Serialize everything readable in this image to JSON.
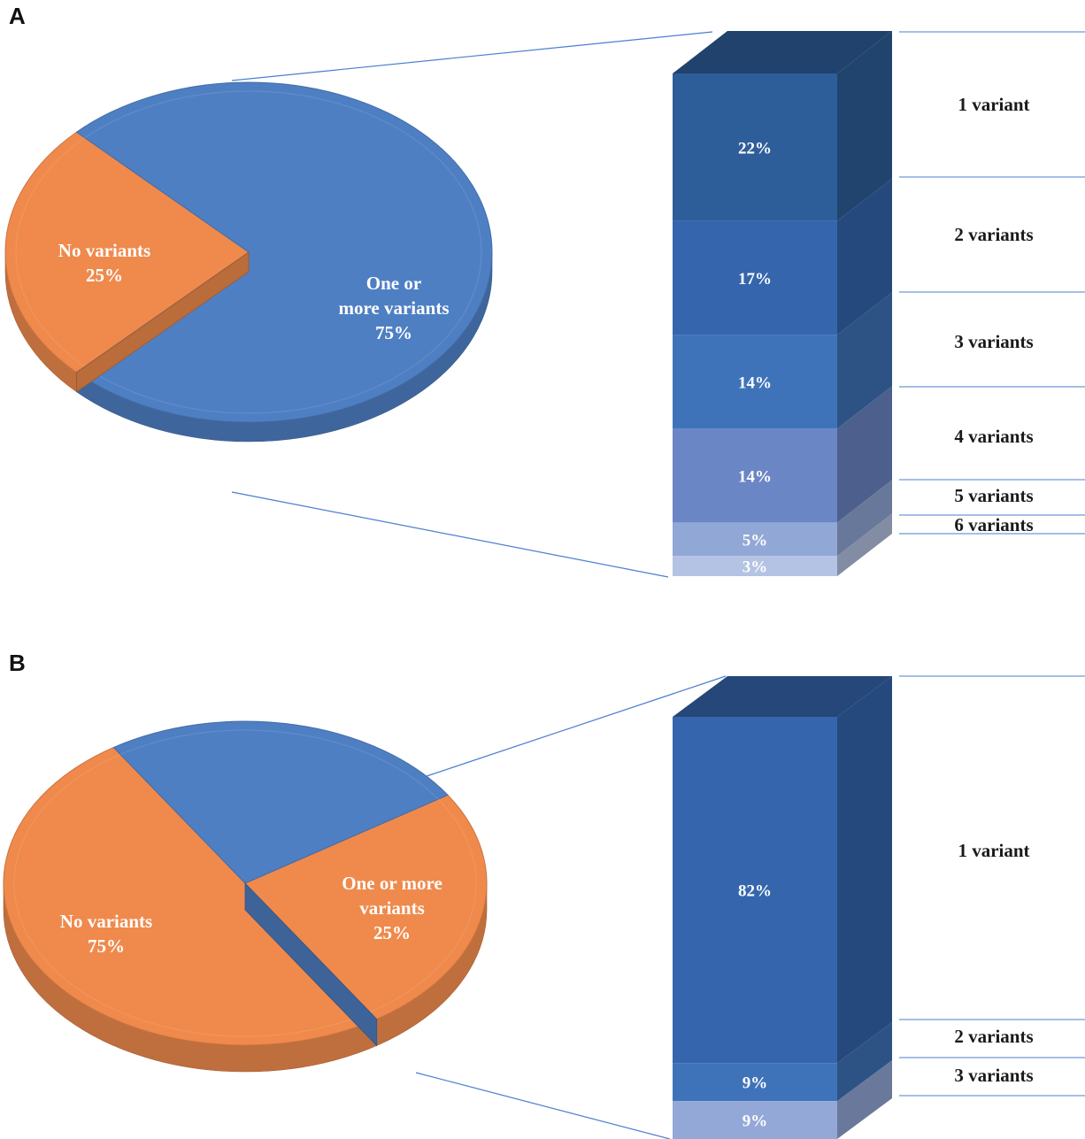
{
  "colors": {
    "orange": "#ef8a4c",
    "orange_side": "#c96a30",
    "blue": "#4f7fc3",
    "blue_side": "#3a63a4",
    "connector": "#4a7fd0"
  },
  "chart_data": [
    {
      "panel": "A",
      "type": "pie",
      "slices": [
        {
          "name": "No variants",
          "label": "No variants",
          "value": 25,
          "value_label": "25%",
          "color": "#ef8a4c"
        },
        {
          "name": "One or more variants",
          "label_lines": [
            "One or",
            "more variants"
          ],
          "value": 75,
          "value_label": "75%",
          "color": "#4f7fc3"
        }
      ],
      "breakdown": {
        "type": "bar",
        "of_slice": "One or more variants",
        "segments": [
          {
            "category": "1 variant",
            "value": 22,
            "label": "22%",
            "color": "#2e5e9a"
          },
          {
            "category": "2 variants",
            "value": 17,
            "label": "17%",
            "color": "#3566ad"
          },
          {
            "category": "3 variants",
            "value": 14,
            "label": "14%",
            "color": "#3f73b9"
          },
          {
            "category": "4 variants",
            "value": 14,
            "label": "14%",
            "color": "#6b86c4"
          },
          {
            "category": "5 variants",
            "value": 5,
            "label": "5%",
            "color": "#91a7d6"
          },
          {
            "category": "6 variants",
            "value": 3,
            "label": "3%",
            "color": "#b4c2e3"
          }
        ]
      }
    },
    {
      "panel": "B",
      "type": "pie",
      "slices": [
        {
          "name": "No variants",
          "label": "No variants",
          "value": 75,
          "value_label": "75%",
          "color": "#ef8a4c"
        },
        {
          "name": "One or more variants",
          "label_lines": [
            "One or more",
            "variants"
          ],
          "value": 25,
          "value_label": "25%",
          "color": "#4f7fc3"
        }
      ],
      "breakdown": {
        "type": "bar",
        "of_slice": "One or more variants",
        "segments": [
          {
            "category": "1 variant",
            "value": 82,
            "label": "82%",
            "color": "#3566ad"
          },
          {
            "category": "2 variants",
            "value": 9,
            "label": "9%",
            "color": "#3f73b9"
          },
          {
            "category": "3 variants",
            "value": 9,
            "label": "9%",
            "color": "#93a8d7"
          }
        ]
      }
    }
  ]
}
